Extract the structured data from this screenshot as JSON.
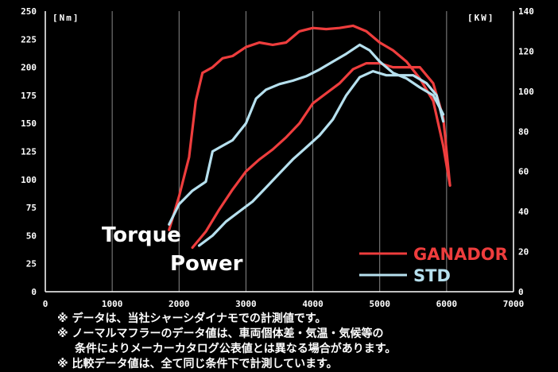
{
  "chart_data": {
    "type": "line",
    "title": "",
    "xlabel": "",
    "ylabel_left": "[Nm]",
    "ylabel_right": "[KW]",
    "xlim": [
      0,
      7000
    ],
    "ylim_left": [
      0,
      250
    ],
    "ylim_right": [
      0,
      140
    ],
    "x_ticks": [
      "0",
      "1000",
      "2000",
      "3000",
      "4000",
      "5000",
      "6000",
      "7000"
    ],
    "y_left_ticks": [
      "0",
      "25",
      "50",
      "75",
      "100",
      "125",
      "150",
      "175",
      "200",
      "225",
      "250"
    ],
    "y_right_ticks": [
      "0",
      "20",
      "40",
      "60",
      "80",
      "100",
      "120",
      "140"
    ],
    "grid": "vertical",
    "legend": "bottom-right",
    "annotations": [
      "Torque",
      "Power"
    ],
    "colors": {
      "ganador": "#ee3d3d",
      "std": "#b6e0ee",
      "background": "#000000"
    },
    "series": [
      {
        "name": "GANADOR",
        "measure": "Torque",
        "axis": "left",
        "color": "#ee3d3d",
        "x": [
          1850,
          2000,
          2150,
          2250,
          2350,
          2500,
          2650,
          2800,
          3000,
          3200,
          3400,
          3600,
          3800,
          4000,
          4200,
          4400,
          4600,
          4800,
          5000,
          5200,
          5400,
          5600,
          5800,
          5950,
          6050
        ],
        "y": [
          55,
          85,
          120,
          170,
          195,
          200,
          208,
          210,
          218,
          222,
          220,
          222,
          232,
          235,
          234,
          235,
          237,
          232,
          222,
          215,
          205,
          190,
          170,
          130,
          95
        ]
      },
      {
        "name": "GANADOR",
        "measure": "Power",
        "axis": "right",
        "color": "#ee3d3d",
        "x": [
          2200,
          2400,
          2600,
          2800,
          3000,
          3200,
          3400,
          3600,
          3800,
          4000,
          4200,
          4400,
          4600,
          4800,
          5000,
          5200,
          5400,
          5600,
          5800,
          5950,
          6050
        ],
        "y": [
          22,
          30,
          41,
          51,
          60,
          66,
          71,
          77,
          84,
          94,
          99,
          104,
          111,
          114,
          114,
          112,
          112,
          112,
          104,
          87,
          53
        ]
      },
      {
        "name": "STD",
        "measure": "Torque",
        "axis": "left",
        "color": "#b6e0ee",
        "x": [
          1850,
          2000,
          2200,
          2400,
          2500,
          2650,
          2800,
          3000,
          3150,
          3300,
          3500,
          3700,
          3900,
          4100,
          4300,
          4500,
          4700,
          4850,
          5000,
          5200,
          5400,
          5600,
          5800,
          5950
        ],
        "y": [
          60,
          78,
          90,
          98,
          125,
          130,
          135,
          150,
          172,
          180,
          185,
          188,
          192,
          198,
          205,
          212,
          220,
          215,
          205,
          195,
          190,
          182,
          175,
          158
        ]
      },
      {
        "name": "STD",
        "measure": "Power",
        "axis": "right",
        "color": "#b6e0ee",
        "x": [
          2300,
          2500,
          2700,
          2900,
          3100,
          3300,
          3500,
          3700,
          3900,
          4100,
          4300,
          4500,
          4700,
          4900,
          5100,
          5300,
          5500,
          5700,
          5850,
          5950
        ],
        "y": [
          23,
          28,
          35,
          40,
          45,
          52,
          59,
          66,
          72,
          78,
          86,
          98,
          107,
          110,
          108,
          108,
          108,
          104,
          98,
          85
        ]
      }
    ]
  },
  "notes": [
    "※ データは、当社シャーシダイナモでの計測値です。",
    "※ ノーマルマフラーのデータ値は、車両個体差・気温・気候等の",
    "条件によりメーカーカタログ公表値とは異なる場合があります。",
    "※ 比較データ値は、全て同じ条件下で計測しています。"
  ]
}
